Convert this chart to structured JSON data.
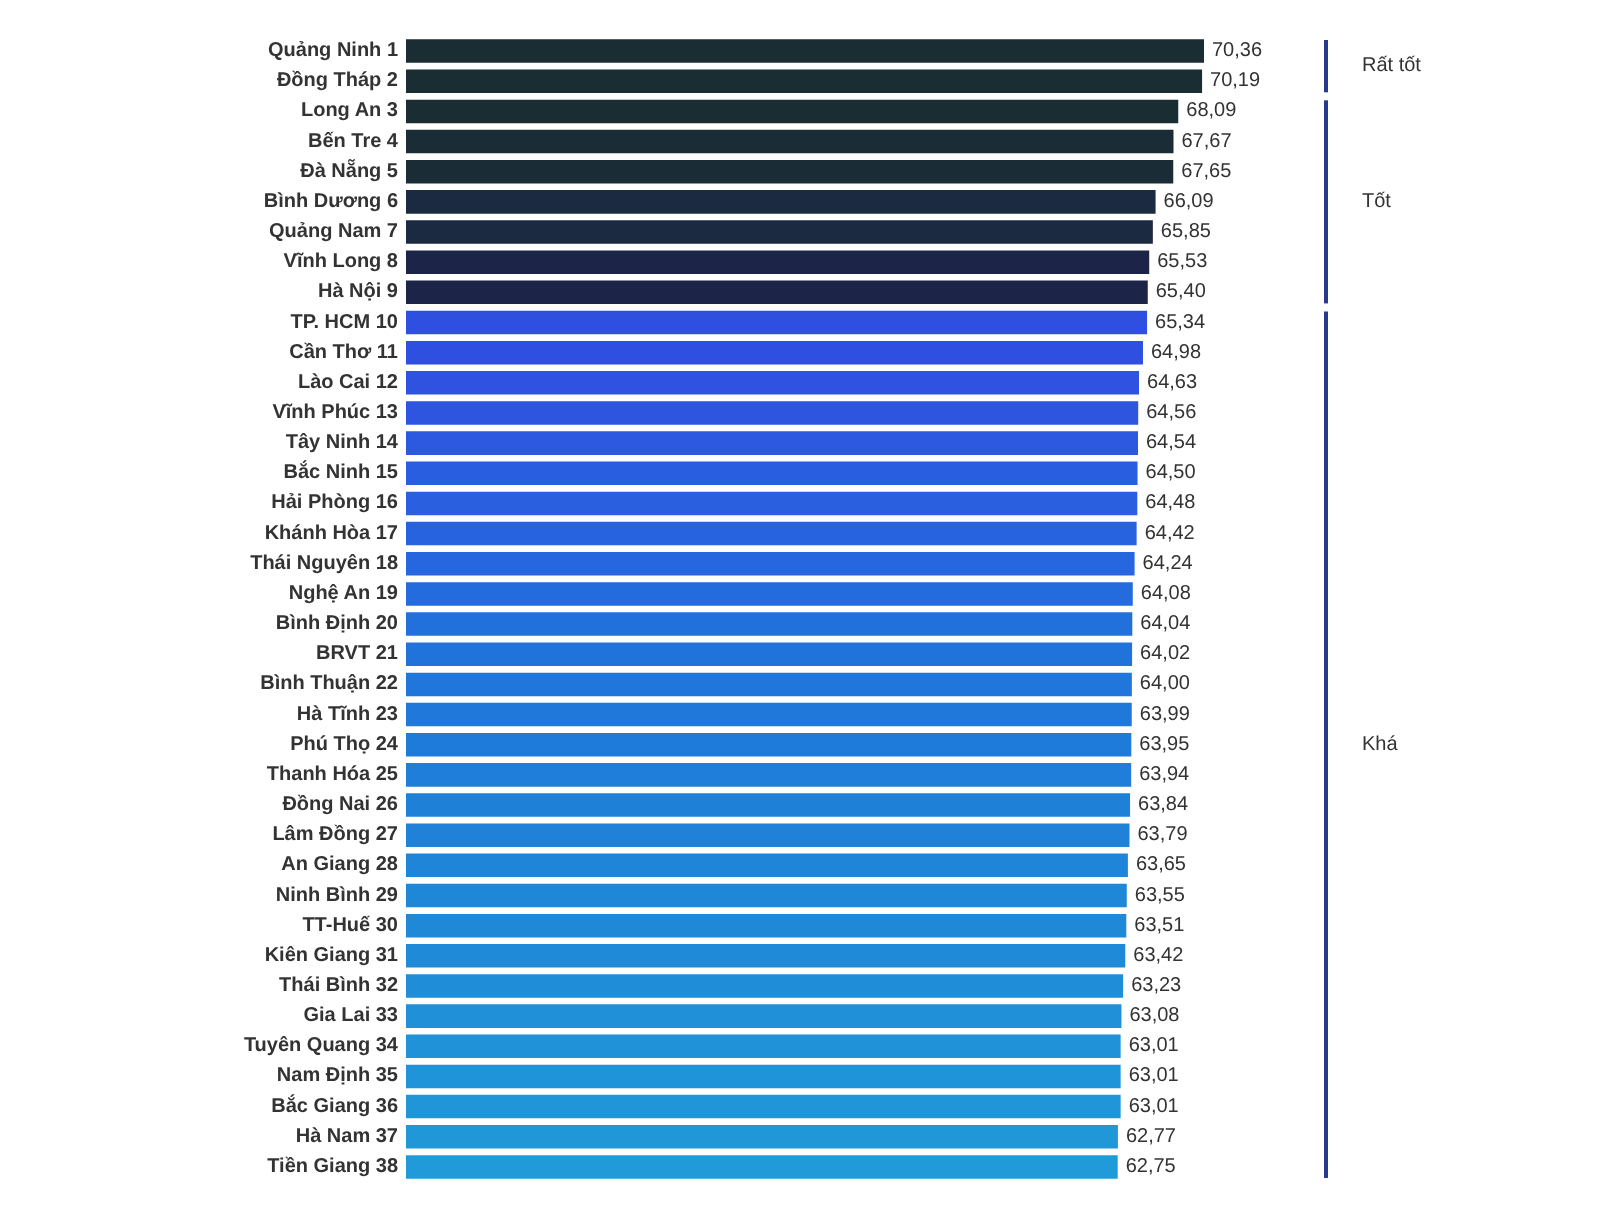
{
  "chart_data": {
    "type": "bar",
    "orientation": "horizontal",
    "categories": [
      "Quảng Ninh 1",
      "Đồng Tháp 2",
      "Long An 3",
      "Bến Tre 4",
      "Đà Nẵng 5",
      "Bình Dương 6",
      "Quảng Nam 7",
      "Vĩnh Long 8",
      "Hà Nội 9",
      "TP. HCM 10",
      "Cần Thơ 11",
      "Lào Cai 12",
      "Vĩnh Phúc 13",
      "Tây Ninh 14",
      "Bắc Ninh 15",
      "Hải Phòng 16",
      "Khánh Hòa 17",
      "Thái Nguyên 18",
      "Nghệ An 19",
      "Bình Định 20",
      "BRVT 21",
      "Bình Thuận 22",
      "Hà Tĩnh 23",
      "Phú Thọ 24",
      "Thanh Hóa 25",
      "Đồng Nai 26",
      "Lâm Đồng 27",
      "An Giang 28",
      "Ninh Bình 29",
      "TT-Huế 30",
      "Kiên Giang 31",
      "Thái Bình 32",
      "Gia Lai 33",
      "Tuyên Quang 34",
      "Nam Định 35",
      "Bắc Giang 36",
      "Hà Nam 37",
      "Tiền Giang 38"
    ],
    "values": [
      70.36,
      70.19,
      68.09,
      67.67,
      67.65,
      66.09,
      65.85,
      65.53,
      65.4,
      65.34,
      64.98,
      64.63,
      64.56,
      64.54,
      64.5,
      64.48,
      64.42,
      64.24,
      64.08,
      64.04,
      64.02,
      64.0,
      63.99,
      63.95,
      63.94,
      63.84,
      63.79,
      63.65,
      63.55,
      63.51,
      63.42,
      63.23,
      63.08,
      63.01,
      63.01,
      63.01,
      62.77,
      62.75
    ],
    "value_labels": [
      "70,36",
      "70,19",
      "68,09",
      "67,67",
      "67,65",
      "66,09",
      "65,85",
      "65,53",
      "65,40",
      "65,34",
      "64,98",
      "64,63",
      "64,56",
      "64,54",
      "64,50",
      "64,48",
      "64,42",
      "64,24",
      "64,08",
      "64,04",
      "64,02",
      "64,00",
      "63,99",
      "63,95",
      "63,94",
      "63,84",
      "63,79",
      "63,65",
      "63,55",
      "63,51",
      "63,42",
      "63,23",
      "63,08",
      "63,01",
      "63,01",
      "63,01",
      "62,77",
      "62,75"
    ],
    "colors": [
      "#1a2d33",
      "#1a2d33",
      "#1a2d33",
      "#1a2d36",
      "#1a2d36",
      "#1b2a40",
      "#1b2a40",
      "#1c2448",
      "#1c2448",
      "#2f4fe0",
      "#2f4fe0",
      "#2f52e0",
      "#2d55e0",
      "#2d58e0",
      "#2a5ee0",
      "#2a60e0",
      "#2863df",
      "#2666de",
      "#246bdd",
      "#2270dc",
      "#2173dc",
      "#2076db",
      "#2078da",
      "#1f7bda",
      "#1f7ed9",
      "#1f80d8",
      "#1f82d8",
      "#1f85d8",
      "#1f87d8",
      "#1f89d8",
      "#1f8bd8",
      "#1f8dd8",
      "#2090d8",
      "#2092d8",
      "#2094d8",
      "#2096d8",
      "#2098d8",
      "#209ad8"
    ],
    "annotations": [
      "Rất tốt",
      "Tốt",
      "Khá"
    ],
    "tick_labels": "y"
  }
}
